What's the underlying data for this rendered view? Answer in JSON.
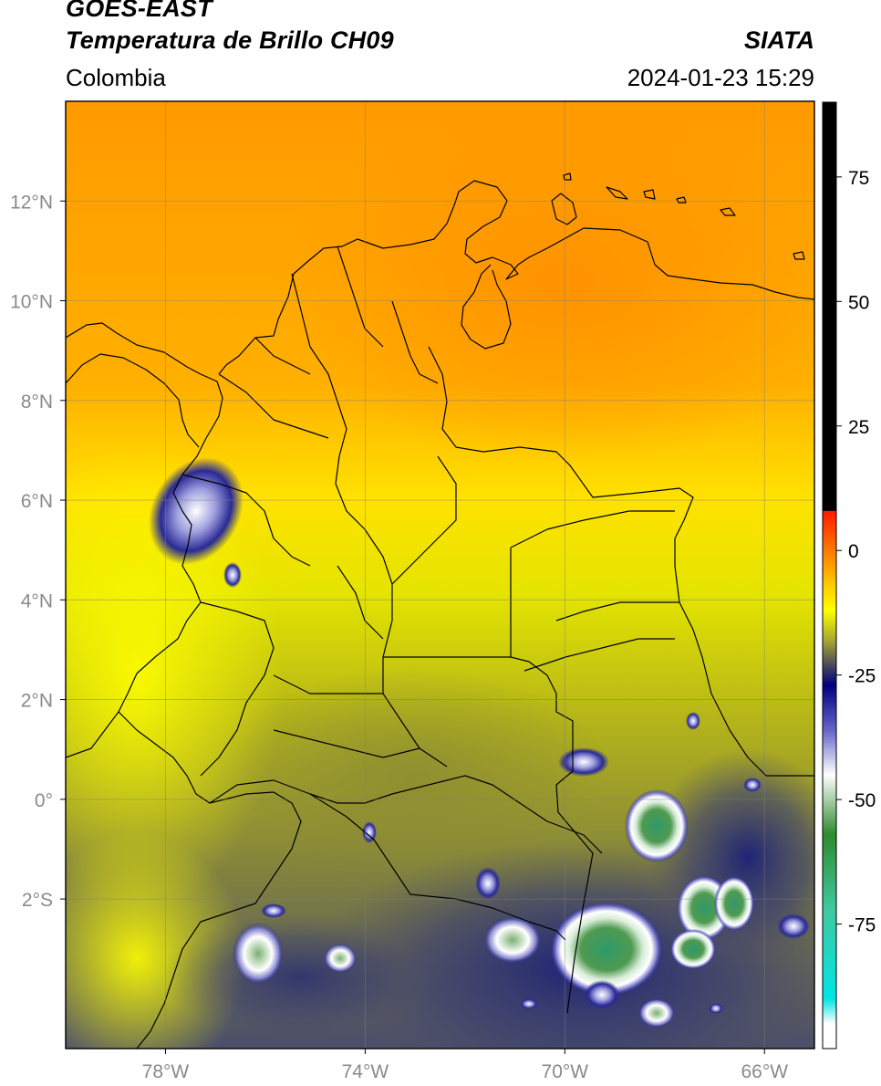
{
  "header": {
    "satellite": "GOES-EAST",
    "product": "Temperatura de Brillo CH09",
    "region": "Colombia",
    "brand": "SIATA",
    "datetime": "2024-01-23 15:29"
  },
  "map": {
    "lon_range": [
      -80,
      -65
    ],
    "lat_range": [
      -5,
      14
    ],
    "lon_ticks": [
      {
        "value": -78,
        "label": "78°W"
      },
      {
        "value": -74,
        "label": "74°W"
      },
      {
        "value": -70,
        "label": "70°W"
      },
      {
        "value": -66,
        "label": "66°W"
      }
    ],
    "lat_ticks": [
      {
        "value": 12,
        "label": "12°N"
      },
      {
        "value": 10,
        "label": "10°N"
      },
      {
        "value": 8,
        "label": "8°N"
      },
      {
        "value": 6,
        "label": "6°N"
      },
      {
        "value": 4,
        "label": "4°N"
      },
      {
        "value": 2,
        "label": "2°N"
      },
      {
        "value": 0,
        "label": "0°"
      },
      {
        "value": -2,
        "label": "2°S"
      }
    ]
  },
  "colorbar": {
    "range": [
      -100,
      90
    ],
    "ticks": [
      {
        "value": 75,
        "label": "75"
      },
      {
        "value": 50,
        "label": "50"
      },
      {
        "value": 25,
        "label": "25"
      },
      {
        "value": 0,
        "label": "0"
      },
      {
        "value": -25,
        "label": "-25"
      },
      {
        "value": -50,
        "label": "-50"
      },
      {
        "value": -75,
        "label": "-75"
      }
    ],
    "stops": [
      {
        "value": 90,
        "color": "#000000"
      },
      {
        "value": 8,
        "color": "#000000"
      },
      {
        "value": 7.9,
        "color": "#ff1a00"
      },
      {
        "value": 0,
        "color": "#ff7a00"
      },
      {
        "value": -7,
        "color": "#ffcc00"
      },
      {
        "value": -12,
        "color": "#ffff00"
      },
      {
        "value": -18,
        "color": "#a8a830"
      },
      {
        "value": -23,
        "color": "#4a4a5a"
      },
      {
        "value": -27,
        "color": "#000080"
      },
      {
        "value": -36,
        "color": "#6464c8"
      },
      {
        "value": -45,
        "color": "#ffffff"
      },
      {
        "value": -57,
        "color": "#2e8b2e"
      },
      {
        "value": -72,
        "color": "#40c8a0"
      },
      {
        "value": -90,
        "color": "#00e5e5"
      },
      {
        "value": -95,
        "color": "#ffffff"
      },
      {
        "value": -100,
        "color": "#ffffff"
      }
    ]
  }
}
